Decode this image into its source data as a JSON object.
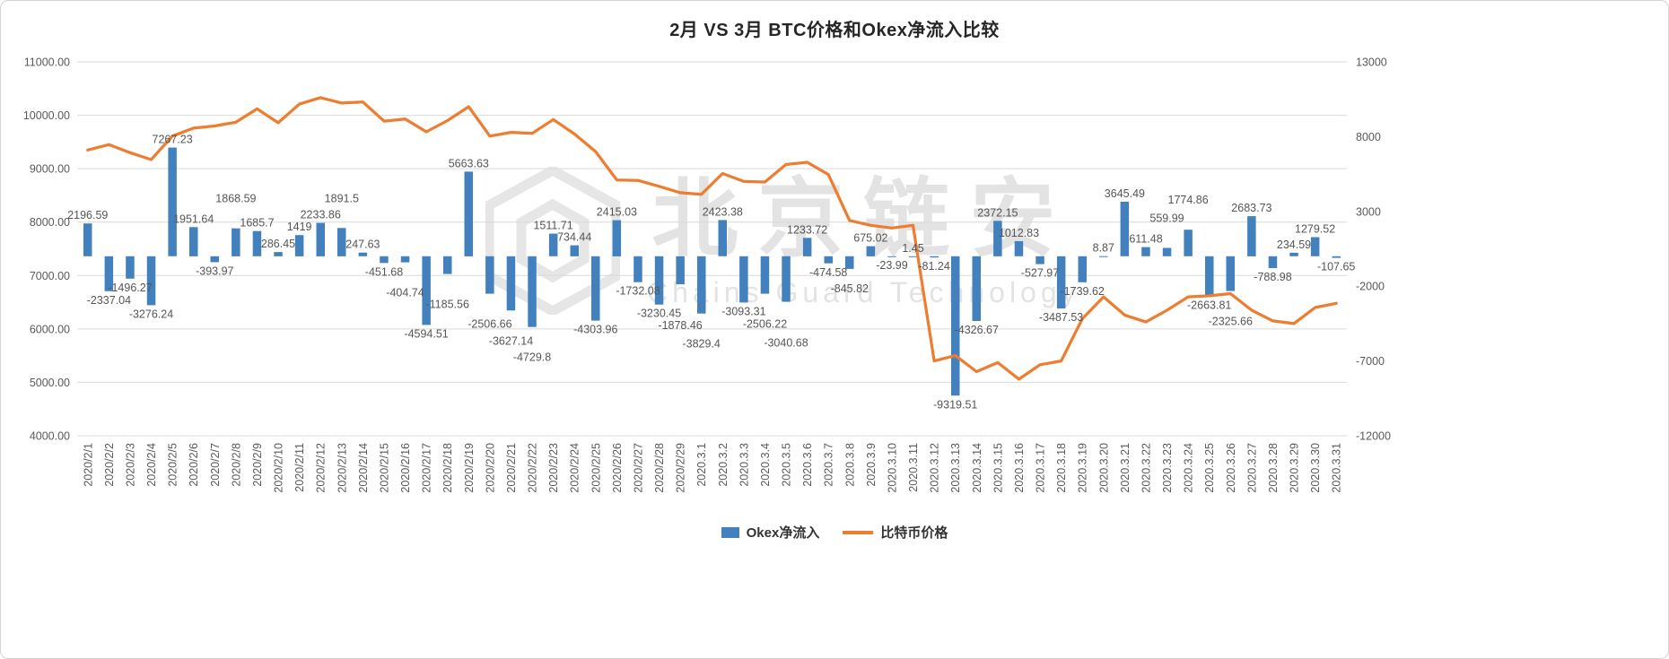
{
  "title": "2月 VS 3月 BTC价格和Okex净流入比较",
  "watermark": {
    "cn": "北京链安",
    "en": "Chains Guard Technology"
  },
  "chart_data": {
    "type": "combo",
    "title": "2月 VS 3月 BTC价格和Okex净流入比较",
    "grid": true,
    "legend_position": "bottom",
    "categories": [
      "2020/2/1",
      "2020/2/2",
      "2020/2/3",
      "2020/2/4",
      "2020/2/5",
      "2020/2/6",
      "2020/2/7",
      "2020/2/8",
      "2020/2/9",
      "2020/2/10",
      "2020/2/11",
      "2020/2/12",
      "2020/2/13",
      "2020/2/14",
      "2020/2/15",
      "2020/2/16",
      "2020/2/17",
      "2020/2/18",
      "2020/2/19",
      "2020/2/20",
      "2020/2/21",
      "2020/2/22",
      "2020/2/23",
      "2020/2/24",
      "2020/2/25",
      "2020/2/26",
      "2020/2/27",
      "2020/2/28",
      "2020/2/29",
      "2020.3.1",
      "2020.3.2",
      "2020.3.3",
      "2020.3.4",
      "2020.3.5",
      "2020.3.6",
      "2020.3.7",
      "2020.3.8",
      "2020.3.9",
      "2020.3.10",
      "2020.3.11",
      "2020.3.12",
      "2020.3.13",
      "2020.3.14",
      "2020.3.15",
      "2020.3.16",
      "2020.3.17",
      "2020.3.18",
      "2020.3.19",
      "2020.3.20",
      "2020.3.21",
      "2020.3.22",
      "2020.3.23",
      "2020.3.24",
      "2020.3.25",
      "2020.3.26",
      "2020.3.27",
      "2020.3.28",
      "2020.3.29",
      "2020.3.30",
      "2020.3.31"
    ],
    "series": [
      {
        "name": "Okex净流入",
        "type": "bar",
        "axis": "right",
        "color": "#4381BE",
        "values": [
          2196.59,
          -2337.04,
          -1496.27,
          -3276.24,
          7267.23,
          1951.64,
          -393.97,
          1868.59,
          1685.7,
          286.45,
          1419,
          2233.86,
          1891.5,
          247.63,
          -451.68,
          -404.74,
          -4594.51,
          -1185.56,
          5663.63,
          -2506.66,
          -3627.14,
          -4729.8,
          1511.71,
          734.44,
          -4303.96,
          2415.03,
          -1732.08,
          -3230.45,
          -1878.46,
          -3829.4,
          2423.38,
          -3093.31,
          -2506.22,
          -3040.68,
          1233.72,
          -474.58,
          -845.82,
          675.02,
          -23.99,
          1.45,
          -81.24,
          -9319.51,
          -4326.67,
          2372.15,
          1012.83,
          -527.97,
          -3487.53,
          -1739.62,
          8.87,
          3645.49,
          611.48,
          559.99,
          1774.86,
          -2663.81,
          -2325.66,
          2683.73,
          -788.98,
          234.59,
          1279.52,
          -107.65
        ]
      },
      {
        "name": "比特币价格",
        "type": "line",
        "axis": "left",
        "color": "#ED7D31",
        "values": [
          9350,
          9450,
          9300,
          9170,
          9610,
          9760,
          9800,
          9870,
          10120,
          9860,
          10210,
          10330,
          10230,
          10250,
          9890,
          9930,
          9690,
          9900,
          10160,
          9610,
          9680,
          9660,
          9920,
          9650,
          9320,
          8790,
          8780,
          8670,
          8550,
          8520,
          8910,
          8760,
          8750,
          9080,
          9120,
          8890,
          8030,
          7940,
          7890,
          7940,
          5400,
          5500,
          5200,
          5370,
          5060,
          5330,
          5400,
          6190,
          6600,
          6260,
          6130,
          6350,
          6600,
          6620,
          6660,
          6350,
          6150,
          6100,
          6400,
          6480
        ]
      }
    ],
    "left_axis": {
      "min": 4000,
      "max": 11000,
      "tick_values": [
        11000,
        10000,
        9000,
        8000,
        7000,
        6000,
        5000,
        4000
      ],
      "tick_labels": [
        "11000.00",
        "10000.00",
        "9000.00",
        "8000.00",
        "7000.00",
        "6000.00",
        "5000.00",
        "4000.00"
      ]
    },
    "right_axis": {
      "min": -12000,
      "max": 13000,
      "tick_values": [
        13000,
        8000,
        3000,
        -2000,
        -7000,
        -12000
      ],
      "tick_labels": [
        "13000",
        "8000",
        "3000",
        "-2000",
        "-7000",
        "-12000"
      ]
    },
    "grid_color": "#D9D9D9"
  }
}
